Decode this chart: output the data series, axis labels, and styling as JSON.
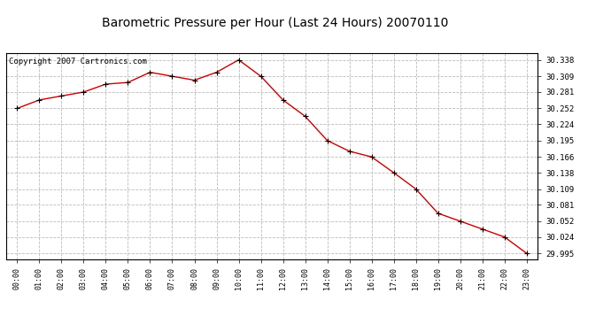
{
  "title": "Barometric Pressure per Hour (Last 24 Hours) 20070110",
  "copyright": "Copyright 2007 Cartronics.com",
  "hours": [
    "00:00",
    "01:00",
    "02:00",
    "03:00",
    "04:00",
    "05:00",
    "06:00",
    "07:00",
    "08:00",
    "09:00",
    "10:00",
    "11:00",
    "12:00",
    "13:00",
    "14:00",
    "15:00",
    "16:00",
    "17:00",
    "18:00",
    "19:00",
    "20:00",
    "21:00",
    "22:00",
    "23:00"
  ],
  "values": [
    30.252,
    30.267,
    30.274,
    30.281,
    30.295,
    30.298,
    30.316,
    30.309,
    30.302,
    30.316,
    30.338,
    30.309,
    30.267,
    30.238,
    30.195,
    30.176,
    30.166,
    30.138,
    30.109,
    30.066,
    30.052,
    30.038,
    30.024,
    29.995
  ],
  "line_color": "#cc0000",
  "marker": "+",
  "marker_color": "#000000",
  "background_color": "#ffffff",
  "grid_color": "#bbbbbb",
  "yticks": [
    29.995,
    30.024,
    30.052,
    30.081,
    30.109,
    30.138,
    30.166,
    30.195,
    30.224,
    30.252,
    30.281,
    30.309,
    30.338
  ],
  "ylim_min": 29.985,
  "ylim_max": 30.35,
  "title_fontsize": 10,
  "copyright_fontsize": 6.5,
  "xtick_fontsize": 6,
  "ytick_fontsize": 6.5
}
